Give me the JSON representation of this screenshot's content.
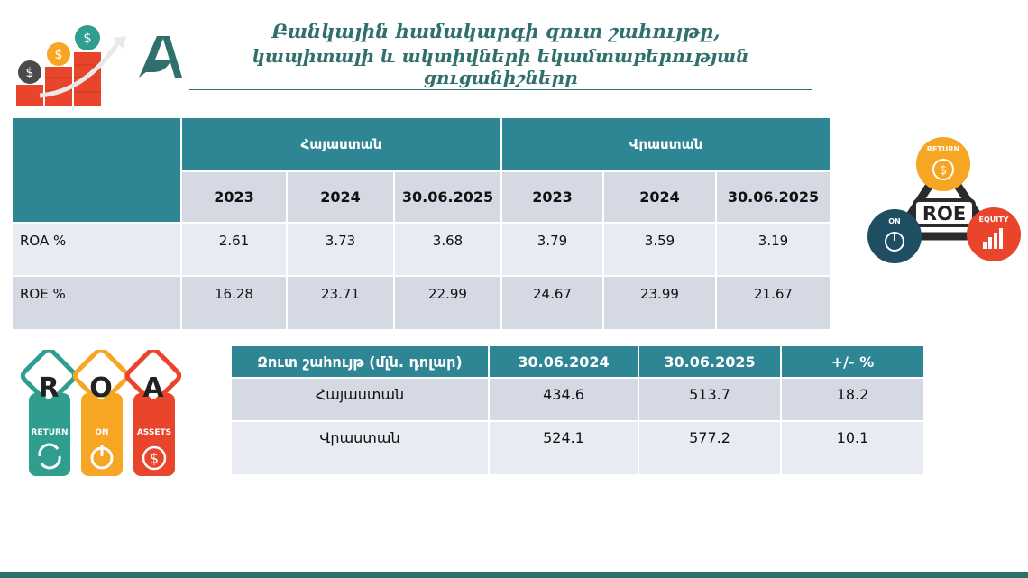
{
  "title": {
    "line1": "Բանկային համակարգի զուտ շահույթը,",
    "line2": "կապիտալի և ակտիվների եկամտաբերության ցուցանիշները"
  },
  "main_table": {
    "countries": [
      "Հայաստան",
      "Վրաստան"
    ],
    "periods": [
      "2023",
      "2024",
      "30.06.2025",
      "2023",
      "2024",
      "30.06.2025"
    ],
    "rows": [
      {
        "label": "ROA %",
        "values": [
          "2.61",
          "3.73",
          "3.68",
          "3.79",
          "3.59",
          "3.19"
        ]
      },
      {
        "label": "ROE %",
        "values": [
          "16.28",
          "23.71",
          "22.99",
          "24.67",
          "23.99",
          "21.67"
        ]
      }
    ]
  },
  "profit_table": {
    "headers": [
      "Զուտ շահույթ (մլն. դոլար)",
      "30.06.2024",
      "30.06.2025",
      "+/- %"
    ],
    "rows": [
      {
        "label": "Հայաստան",
        "values": [
          "434.6",
          "513.7",
          "18.2"
        ]
      },
      {
        "label": "Վրաստան",
        "values": [
          "524.1",
          "577.2",
          "10.1"
        ]
      }
    ]
  },
  "roe_graphic": {
    "center": "ROE",
    "labels": [
      "RETURN",
      "ON",
      "EQUITY"
    ],
    "icons": [
      "dollar-icon",
      "power-icon",
      "bar-chart-icon"
    ],
    "colors": {
      "return": "#f6a623",
      "on": "#1f4e63",
      "equity": "#e8452c"
    }
  },
  "roa_graphic": {
    "letters": [
      "R",
      "O",
      "A"
    ],
    "labels": [
      "RETURN",
      "ON",
      "ASSETS"
    ],
    "icons": [
      "cycle-icon",
      "power-icon",
      "dollar-icon"
    ],
    "colors": {
      "return": "#2f9e8f",
      "on": "#f6a623",
      "assets": "#e8452c"
    }
  },
  "colors": {
    "header": "#2e8594",
    "title": "#2f6f6c",
    "row_dark": "#d5d9e4",
    "row_light": "#e8ebf1"
  }
}
